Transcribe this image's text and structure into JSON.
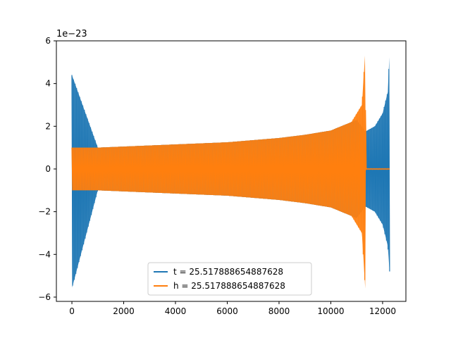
{
  "chart_data": {
    "type": "line",
    "title": "",
    "xlabel": "",
    "ylabel": "",
    "xlim": [
      -600,
      12900
    ],
    "ylim": [
      -6.2,
      6.0
    ],
    "y_scale_label": "1e−23",
    "x_ticks": [
      0,
      2000,
      4000,
      6000,
      8000,
      10000,
      12000
    ],
    "x_tick_labels": [
      "0",
      "2000",
      "4000",
      "6000",
      "8000",
      "10000",
      "12000"
    ],
    "y_ticks": [
      -6,
      -4,
      -2,
      0,
      2,
      4,
      6
    ],
    "y_tick_labels": [
      "−6",
      "−4",
      "−2",
      "0",
      "2",
      "4",
      "6"
    ],
    "legend_position": "lower-center",
    "series": [
      {
        "name": "t = 25.517888654887628",
        "color": "#1f77b4",
        "x": [
          0,
          1000,
          2000,
          3000,
          4000,
          5000,
          6000,
          7000,
          8000,
          9000,
          10000,
          11000,
          11330,
          11700,
          12000,
          12200,
          12270
        ],
        "envelope": [
          4.4,
          1.0,
          1.05,
          1.1,
          1.15,
          1.2,
          1.25,
          1.35,
          1.45,
          1.6,
          1.8,
          2.3,
          1.75,
          2.0,
          2.6,
          3.6,
          5.5
        ],
        "envelope_lower": [
          -5.6,
          -1.0,
          -1.05,
          -1.1,
          -1.15,
          -1.2,
          -1.25,
          -1.35,
          -1.45,
          -1.6,
          -1.8,
          -2.3,
          -1.75,
          -2.0,
          -2.6,
          -3.6,
          -4.8
        ]
      },
      {
        "name": "h = 25.517888654887628",
        "color": "#ff7f0e",
        "x": [
          0,
          1000,
          2000,
          3000,
          4000,
          5000,
          6000,
          7000,
          8000,
          9000,
          10000,
          10800,
          11200,
          11330,
          11350,
          12270
        ],
        "envelope": [
          1.0,
          1.0,
          1.05,
          1.1,
          1.15,
          1.2,
          1.25,
          1.35,
          1.45,
          1.6,
          1.8,
          2.2,
          3.0,
          5.5,
          0.02,
          0.02
        ],
        "envelope_lower": [
          -1.0,
          -1.0,
          -1.05,
          -1.1,
          -1.15,
          -1.2,
          -1.25,
          -1.35,
          -1.45,
          -1.6,
          -1.8,
          -2.2,
          -3.0,
          -5.6,
          -0.02,
          -0.02
        ]
      }
    ]
  }
}
